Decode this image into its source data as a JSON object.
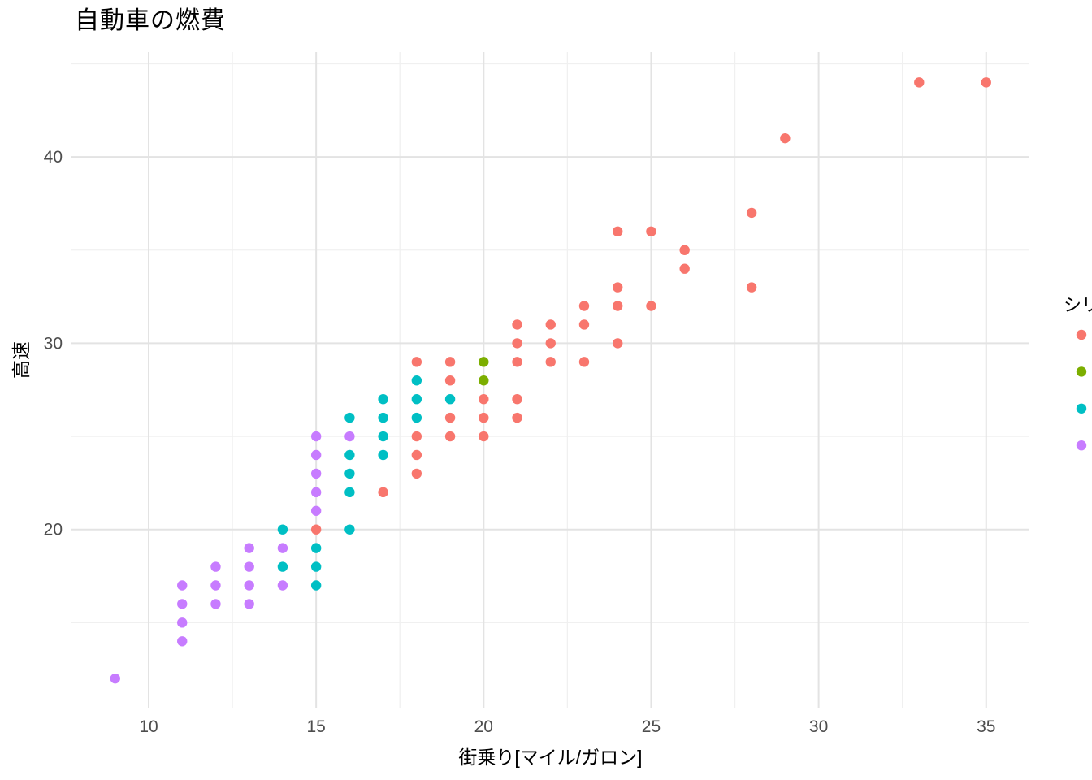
{
  "page": {
    "background": "#FFFFFF"
  },
  "chart_data": {
    "type": "scatter",
    "title": "自動車の燃費",
    "xlabel": "街乗り[マイル/ガロン]",
    "ylabel": "高速",
    "x_ticks": [
      10,
      15,
      20,
      25,
      30,
      35
    ],
    "x_minor_ticks": [
      12.5,
      17.5,
      22.5,
      27.5,
      32.5
    ],
    "y_ticks": [
      20,
      30,
      40
    ],
    "y_minor_ticks": [
      15,
      25,
      35,
      45
    ],
    "xlim": [
      7.7,
      36.3
    ],
    "ylim": [
      10.4,
      45.7
    ],
    "grid": "major and minor gridlines, light gray on white background",
    "legend": {
      "title": "シリ",
      "position": "right edge, clipped by image border",
      "labels_visible": false,
      "swatch_colors": [
        "#F8766D",
        "#7CAE00",
        "#00BFC4",
        "#C77CFF"
      ]
    },
    "series": [
      {
        "label": "",
        "color": "#F8766D",
        "points": [
          [
            15,
            20
          ],
          [
            17,
            22
          ],
          [
            18,
            23
          ],
          [
            18,
            24
          ],
          [
            18,
            25
          ],
          [
            18,
            29
          ],
          [
            19,
            25
          ],
          [
            19,
            26
          ],
          [
            19,
            28
          ],
          [
            19,
            29
          ],
          [
            20,
            25
          ],
          [
            20,
            26
          ],
          [
            20,
            27
          ],
          [
            21,
            26
          ],
          [
            21,
            27
          ],
          [
            21,
            29
          ],
          [
            21,
            30
          ],
          [
            21,
            31
          ],
          [
            22,
            29
          ],
          [
            22,
            30
          ],
          [
            22,
            31
          ],
          [
            23,
            29
          ],
          [
            23,
            31
          ],
          [
            23,
            32
          ],
          [
            24,
            30
          ],
          [
            24,
            32
          ],
          [
            24,
            33
          ],
          [
            24,
            36
          ],
          [
            25,
            32
          ],
          [
            25,
            36
          ],
          [
            26,
            34
          ],
          [
            26,
            35
          ],
          [
            28,
            33
          ],
          [
            28,
            37
          ],
          [
            29,
            41
          ],
          [
            33,
            44
          ],
          [
            35,
            44
          ]
        ]
      },
      {
        "label": "",
        "color": "#7CAE00",
        "points": [
          [
            20,
            28
          ],
          [
            20,
            29
          ]
        ]
      },
      {
        "label": "",
        "color": "#00BFC4",
        "points": [
          [
            14,
            18
          ],
          [
            14,
            20
          ],
          [
            15,
            17
          ],
          [
            15,
            18
          ],
          [
            15,
            19
          ],
          [
            16,
            20
          ],
          [
            16,
            22
          ],
          [
            16,
            23
          ],
          [
            16,
            24
          ],
          [
            16,
            26
          ],
          [
            17,
            24
          ],
          [
            17,
            25
          ],
          [
            17,
            26
          ],
          [
            17,
            27
          ],
          [
            18,
            26
          ],
          [
            18,
            27
          ],
          [
            18,
            28
          ],
          [
            19,
            27
          ]
        ]
      },
      {
        "label": "",
        "color": "#C77CFF",
        "points": [
          [
            9,
            12
          ],
          [
            11,
            14
          ],
          [
            11,
            15
          ],
          [
            11,
            16
          ],
          [
            11,
            17
          ],
          [
            12,
            16
          ],
          [
            12,
            17
          ],
          [
            12,
            18
          ],
          [
            13,
            16
          ],
          [
            13,
            17
          ],
          [
            13,
            18
          ],
          [
            13,
            19
          ],
          [
            14,
            17
          ],
          [
            14,
            19
          ],
          [
            15,
            21
          ],
          [
            15,
            22
          ],
          [
            15,
            23
          ],
          [
            15,
            24
          ],
          [
            15,
            25
          ],
          [
            16,
            25
          ]
        ]
      }
    ],
    "style": {
      "tick_label_color": "#4D4D4D",
      "title_color": "#000000",
      "major_grid_color": "#E3E3E3",
      "minor_grid_color": "#F0F0F0",
      "point_radius_px": 6.2
    }
  }
}
